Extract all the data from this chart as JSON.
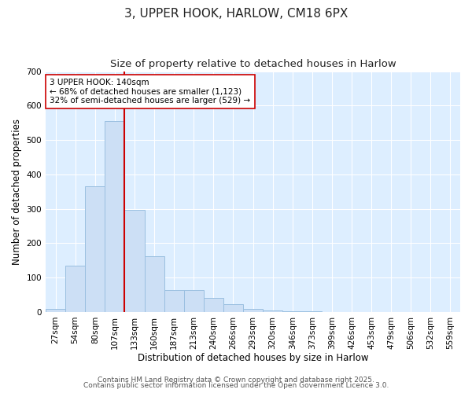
{
  "title": "3, UPPER HOOK, HARLOW, CM18 6PX",
  "subtitle": "Size of property relative to detached houses in Harlow",
  "xlabel": "Distribution of detached houses by size in Harlow",
  "ylabel": "Number of detached properties",
  "categories": [
    "27sqm",
    "54sqm",
    "80sqm",
    "107sqm",
    "133sqm",
    "160sqm",
    "187sqm",
    "213sqm",
    "240sqm",
    "266sqm",
    "293sqm",
    "320sqm",
    "346sqm",
    "373sqm",
    "399sqm",
    "426sqm",
    "453sqm",
    "479sqm",
    "506sqm",
    "532sqm",
    "559sqm"
  ],
  "values": [
    8,
    135,
    365,
    555,
    298,
    162,
    65,
    65,
    40,
    22,
    10,
    5,
    3,
    2,
    0,
    0,
    0,
    0,
    0,
    0,
    0
  ],
  "bar_color": "#ccdff5",
  "bar_edge_color": "#9abfe0",
  "vline_x": 4,
  "vline_color": "#cc0000",
  "annotation_text": "3 UPPER HOOK: 140sqm\n← 68% of detached houses are smaller (1,123)\n32% of semi-detached houses are larger (529) →",
  "annotation_box_facecolor": "#ffffff",
  "annotation_box_edgecolor": "#cc0000",
  "ylim": [
    0,
    700
  ],
  "yticks": [
    0,
    100,
    200,
    300,
    400,
    500,
    600,
    700
  ],
  "fig_facecolor": "#ffffff",
  "axes_facecolor": "#ddeeff",
  "grid_color": "#ffffff",
  "title_fontsize": 11,
  "subtitle_fontsize": 9.5,
  "axis_label_fontsize": 8.5,
  "tick_fontsize": 7.5,
  "annotation_fontsize": 7.5,
  "footer_line1": "Contains HM Land Registry data © Crown copyright and database right 2025.",
  "footer_line2": "Contains public sector information licensed under the Open Government Licence 3.0.",
  "footer_fontsize": 6.5
}
